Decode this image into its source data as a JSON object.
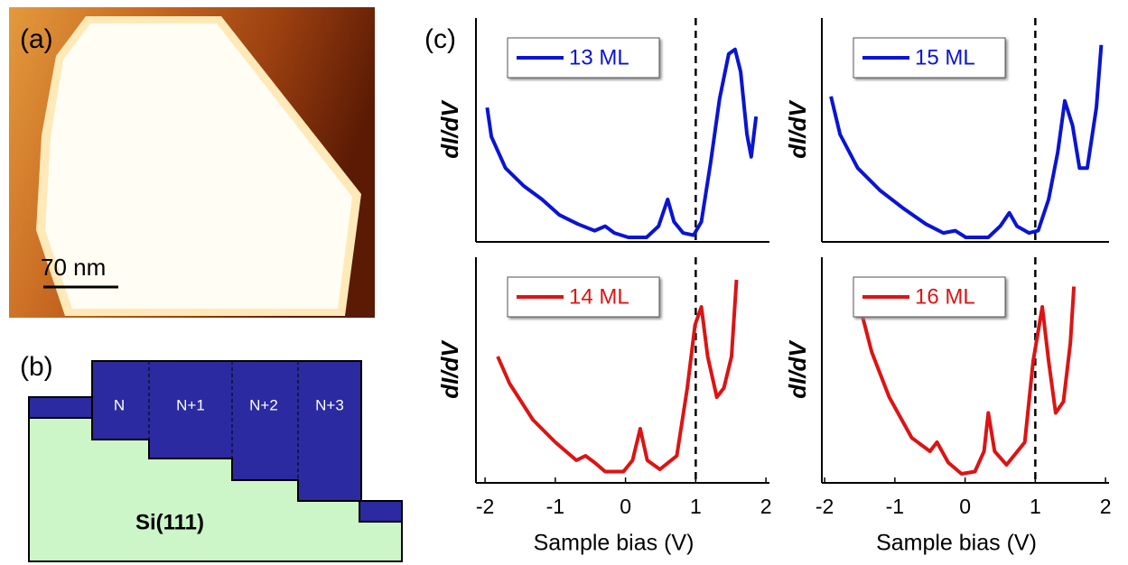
{
  "panel_a": {
    "label": "(a)",
    "scale_bar": "70 nm"
  },
  "panel_b": {
    "label": "(b)",
    "layers": [
      "N",
      "N+1",
      "N+2",
      "N+3"
    ],
    "substrate": "Si(111)"
  },
  "panel_c": {
    "label": "(c)"
  },
  "chart_data": [
    {
      "type": "line",
      "ylabel": "dI/dV",
      "xlim": [
        -2.13,
        2.05
      ],
      "ylim": [
        0,
        100
      ],
      "vline": 1,
      "legend": "upper left",
      "x": [
        -1.97,
        -1.91,
        -1.71,
        -1.45,
        -1.19,
        -0.94,
        -0.68,
        -0.44,
        -0.29,
        -0.16,
        0.04,
        0.3,
        0.47,
        0.6,
        0.69,
        0.82,
        0.97,
        1.08,
        1.21,
        1.34,
        1.47,
        1.56,
        1.64,
        1.73,
        1.79,
        1.86
      ],
      "series": [
        {
          "name": "13 ML",
          "color": "#0a14d2",
          "values": [
            60,
            47,
            33,
            25,
            19,
            12,
            8,
            5,
            7,
            4,
            2,
            2,
            7,
            19,
            9,
            4,
            3,
            9,
            35,
            64,
            84,
            86,
            76,
            48,
            38,
            56
          ]
        }
      ]
    },
    {
      "type": "line",
      "ylabel": "dI/dV",
      "xlim": [
        -2.04,
        2.05
      ],
      "ylim": [
        0,
        100
      ],
      "vline": 1,
      "legend": "upper left",
      "x": [
        -1.91,
        -1.78,
        -1.53,
        -1.21,
        -0.88,
        -0.56,
        -0.31,
        -0.14,
        0.01,
        0.33,
        0.5,
        0.63,
        0.74,
        0.91,
        1.04,
        1.19,
        1.32,
        1.42,
        1.53,
        1.63,
        1.74,
        1.87,
        1.94
      ],
      "series": [
        {
          "name": "15 ML",
          "color": "#0a14d2",
          "values": [
            65,
            48,
            33,
            23,
            15,
            8,
            4,
            5,
            2,
            2,
            7,
            13,
            7,
            4,
            5,
            19,
            40,
            63,
            52,
            33,
            33,
            60,
            88
          ]
        }
      ]
    },
    {
      "type": "line",
      "ylabel": "dI/dV",
      "xlabel": "Sample bias (V)",
      "xlim": [
        -2.13,
        2.05
      ],
      "ylim": [
        0,
        100
      ],
      "xticks": [
        -2,
        -1,
        0,
        1,
        2
      ],
      "vline": 1,
      "legend": "upper left",
      "x": [
        -1.82,
        -1.65,
        -1.32,
        -1.0,
        -0.7,
        -0.57,
        -0.44,
        -0.29,
        -0.03,
        0.1,
        0.21,
        0.31,
        0.49,
        0.73,
        0.88,
        0.99,
        1.08,
        1.17,
        1.3,
        1.4,
        1.51,
        1.58
      ],
      "series": [
        {
          "name": "14 ML",
          "color": "#dc1414",
          "values": [
            56,
            44,
            28,
            18,
            10,
            12,
            9,
            5,
            5,
            10,
            24,
            10,
            6,
            12,
            42,
            70,
            78,
            56,
            38,
            42,
            56,
            90
          ]
        }
      ]
    },
    {
      "type": "line",
      "ylabel": "dI/dV",
      "xlabel": "Sample bias (V)",
      "xlim": [
        -2.04,
        2.05
      ],
      "ylim": [
        0,
        100
      ],
      "xticks": [
        -2,
        -1,
        0,
        1,
        2
      ],
      "vline": 1,
      "legend": "upper left",
      "x": [
        -1.53,
        -1.33,
        -1.08,
        -0.76,
        -0.5,
        -0.4,
        -0.24,
        -0.05,
        0.14,
        0.27,
        0.33,
        0.42,
        0.59,
        0.85,
        0.97,
        1.1,
        1.19,
        1.29,
        1.4,
        1.5,
        1.55
      ],
      "series": [
        {
          "name": "16 ML",
          "color": "#dc1414",
          "values": [
            82,
            58,
            38,
            20,
            14,
            18,
            9,
            4,
            5,
            14,
            31,
            14,
            8,
            18,
            54,
            78,
            54,
            31,
            36,
            62,
            87
          ]
        }
      ]
    }
  ]
}
